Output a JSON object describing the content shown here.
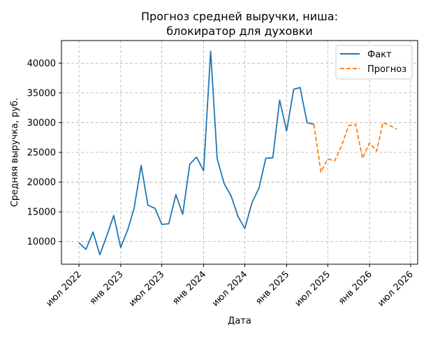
{
  "chart_data": {
    "type": "line",
    "title_lines": [
      "Прогноз средней выручки, ниша:",
      "блокиратор для духовки"
    ],
    "xlabel": "Дата",
    "ylabel": "Средняя выручка, руб.",
    "x_ticks": [
      {
        "date": "2022-07-01",
        "label": "июл 2022"
      },
      {
        "date": "2023-01-01",
        "label": "янв 2023"
      },
      {
        "date": "2023-07-01",
        "label": "июл 2023"
      },
      {
        "date": "2024-01-01",
        "label": "янв 2024"
      },
      {
        "date": "2024-07-01",
        "label": "июл 2024"
      },
      {
        "date": "2025-01-01",
        "label": "янв 2025"
      },
      {
        "date": "2025-07-01",
        "label": "июл 2025"
      },
      {
        "date": "2026-01-01",
        "label": "янв 2026"
      },
      {
        "date": "2026-07-01",
        "label": "июл 2026"
      }
    ],
    "y_ticks": [
      10000,
      15000,
      20000,
      25000,
      30000,
      35000,
      40000
    ],
    "xlim": [
      "2022-04-15",
      "2026-08-01"
    ],
    "ylim": [
      6200,
      43800
    ],
    "grid": true,
    "legend_position": "top-right",
    "series": [
      {
        "name": "Факт",
        "color": "#1f77b4",
        "dashed": false,
        "points": [
          [
            "2022-07-01",
            9800
          ],
          [
            "2022-08-01",
            8700
          ],
          [
            "2022-09-01",
            11600
          ],
          [
            "2022-10-01",
            7800
          ],
          [
            "2022-11-01",
            11000
          ],
          [
            "2022-12-01",
            14400
          ],
          [
            "2023-01-01",
            9000
          ],
          [
            "2023-02-01",
            12000
          ],
          [
            "2023-03-01",
            15600
          ],
          [
            "2023-04-01",
            22800
          ],
          [
            "2023-05-01",
            16100
          ],
          [
            "2023-06-01",
            15600
          ],
          [
            "2023-07-01",
            12900
          ],
          [
            "2023-08-01",
            13000
          ],
          [
            "2023-09-01",
            17900
          ],
          [
            "2023-10-01",
            14600
          ],
          [
            "2023-11-01",
            23000
          ],
          [
            "2023-12-01",
            24200
          ],
          [
            "2024-01-01",
            21900
          ],
          [
            "2024-02-01",
            42000
          ],
          [
            "2024-03-01",
            23900
          ],
          [
            "2024-04-01",
            19700
          ],
          [
            "2024-05-01",
            17700
          ],
          [
            "2024-06-01",
            14200
          ],
          [
            "2024-07-01",
            12200
          ],
          [
            "2024-08-01",
            16500
          ],
          [
            "2024-09-01",
            19000
          ],
          [
            "2024-10-01",
            24000
          ],
          [
            "2024-11-01",
            24100
          ],
          [
            "2024-12-01",
            33800
          ],
          [
            "2025-01-01",
            28600
          ],
          [
            "2025-02-01",
            35600
          ],
          [
            "2025-03-01",
            35900
          ],
          [
            "2025-04-01",
            30000
          ],
          [
            "2025-05-01",
            29700
          ]
        ]
      },
      {
        "name": "Прогноз",
        "color": "#ff7f0e",
        "dashed": true,
        "points": [
          [
            "2025-05-01",
            29700
          ],
          [
            "2025-06-01",
            21700
          ],
          [
            "2025-07-01",
            23900
          ],
          [
            "2025-08-01",
            23600
          ],
          [
            "2025-09-01",
            26200
          ],
          [
            "2025-10-01",
            29500
          ],
          [
            "2025-11-01",
            29700
          ],
          [
            "2025-12-01",
            24000
          ],
          [
            "2026-01-01",
            26600
          ],
          [
            "2026-02-01",
            25200
          ],
          [
            "2026-03-01",
            30000
          ],
          [
            "2026-04-01",
            29500
          ],
          [
            "2026-05-01",
            28900
          ]
        ]
      }
    ]
  }
}
